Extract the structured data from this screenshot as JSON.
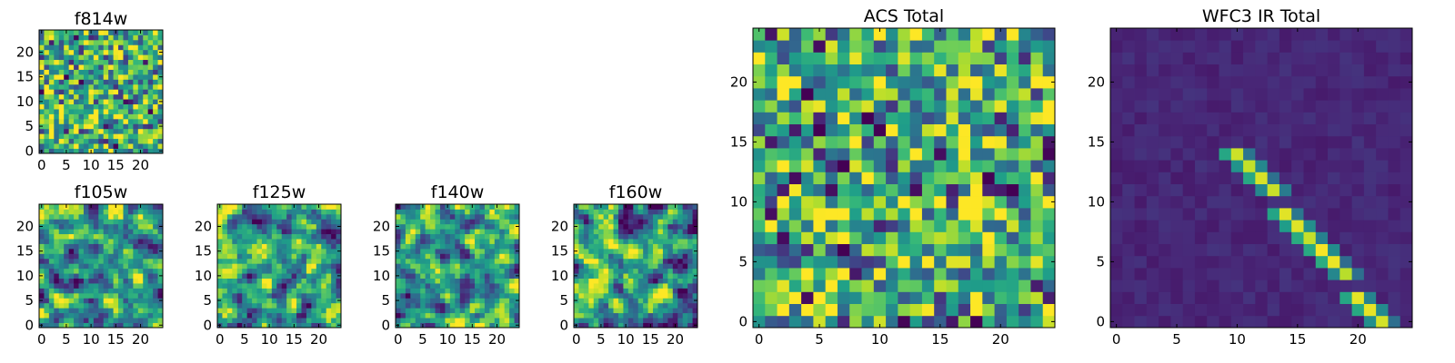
{
  "figure": {
    "colormap": "viridis"
  },
  "chart_data": [
    {
      "id": "f814w",
      "type": "heatmap",
      "title": "f814w",
      "grid": [
        25,
        25
      ],
      "xlim": [
        0,
        24
      ],
      "ylim": [
        0,
        24
      ],
      "xticks": [
        0,
        5,
        10,
        15,
        20
      ],
      "yticks": [
        0,
        5,
        10,
        15,
        20
      ],
      "pattern": "uniform-noise",
      "seed": 11
    },
    {
      "id": "f105w",
      "type": "heatmap",
      "title": "f105w",
      "grid": [
        25,
        25
      ],
      "xlim": [
        0,
        24
      ],
      "ylim": [
        0,
        24
      ],
      "xticks": [
        0,
        5,
        10,
        15,
        20
      ],
      "yticks": [
        0,
        5,
        10,
        15,
        20
      ],
      "pattern": "smooth-noise",
      "seed": 23
    },
    {
      "id": "f125w",
      "type": "heatmap",
      "title": "f125w",
      "grid": [
        25,
        25
      ],
      "xlim": [
        0,
        24
      ],
      "ylim": [
        0,
        24
      ],
      "xticks": [
        0,
        5,
        10,
        15,
        20
      ],
      "yticks": [
        0,
        5,
        10,
        15,
        20
      ],
      "pattern": "smooth-noise",
      "seed": 37
    },
    {
      "id": "f140w",
      "type": "heatmap",
      "title": "f140w",
      "grid": [
        25,
        25
      ],
      "xlim": [
        0,
        24
      ],
      "ylim": [
        0,
        24
      ],
      "xticks": [
        0,
        5,
        10,
        15,
        20
      ],
      "yticks": [
        0,
        5,
        10,
        15,
        20
      ],
      "pattern": "smooth-noise",
      "seed": 41
    },
    {
      "id": "f160w",
      "type": "heatmap",
      "title": "f160w",
      "grid": [
        25,
        25
      ],
      "xlim": [
        0,
        24
      ],
      "ylim": [
        0,
        24
      ],
      "xticks": [
        0,
        5,
        10,
        15,
        20
      ],
      "yticks": [
        0,
        5,
        10,
        15,
        20
      ],
      "pattern": "smooth-noise",
      "seed": 53
    },
    {
      "id": "acs-total",
      "type": "heatmap",
      "title": "ACS Total",
      "grid": [
        25,
        25
      ],
      "xlim": [
        0,
        24
      ],
      "ylim": [
        0,
        24
      ],
      "xticks": [
        0,
        5,
        10,
        15,
        20
      ],
      "yticks": [
        0,
        5,
        10,
        15,
        20
      ],
      "pattern": "uniform-noise",
      "seed": 67
    },
    {
      "id": "wfc3-ir-total",
      "type": "heatmap",
      "title": "WFC3 IR Total",
      "grid": [
        25,
        25
      ],
      "xlim": [
        0,
        24
      ],
      "ylim": [
        0,
        24
      ],
      "xticks": [
        0,
        5,
        10,
        15,
        20
      ],
      "yticks": [
        0,
        5,
        10,
        15,
        20
      ],
      "pattern": "diagonal-streak",
      "streak": {
        "x_start": 10,
        "y_start": 14,
        "x_end": 22,
        "y_end": 0,
        "peak": 1.0,
        "background": 0.07
      },
      "seed": 79
    }
  ]
}
